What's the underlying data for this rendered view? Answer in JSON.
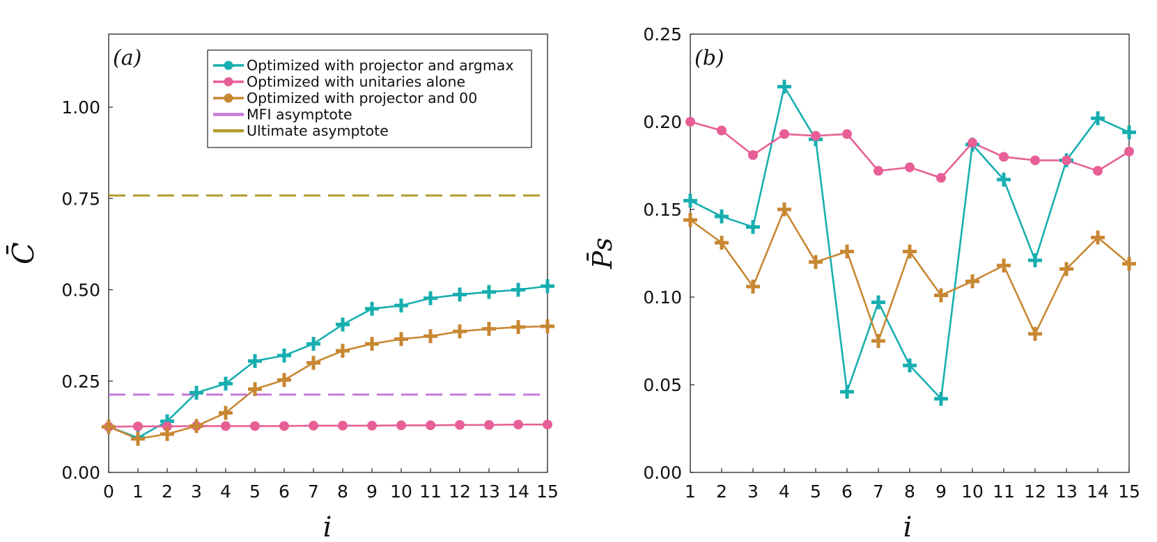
{
  "chart_data": [
    {
      "type": "line",
      "panel": "(a)",
      "xlabel": "i",
      "ylabel": "C̄",
      "x": [
        0,
        1,
        2,
        3,
        4,
        5,
        6,
        7,
        8,
        9,
        10,
        11,
        12,
        13,
        14,
        15
      ],
      "xticks": [
        "0",
        "1",
        "2",
        "3",
        "4",
        "5",
        "6",
        "7",
        "8",
        "9",
        "10",
        "11",
        "12",
        "13",
        "14",
        "15"
      ],
      "xlim": [
        0,
        15
      ],
      "ylim": [
        0,
        1.2
      ],
      "yticks": [
        0,
        0.25,
        0.5,
        0.75,
        1.0
      ],
      "ytick_labels": [
        "0.00",
        "0.25",
        "0.50",
        "0.75",
        "1.00"
      ],
      "legend_position": "top-right",
      "series": [
        {
          "name": "Optimized with projector and argmax",
          "color": "#17aeb0",
          "marker": "cross",
          "values": [
            0.125,
            0.095,
            0.14,
            0.218,
            0.243,
            0.305,
            0.32,
            0.352,
            0.405,
            0.448,
            0.457,
            0.477,
            0.487,
            0.494,
            0.5,
            0.51
          ]
        },
        {
          "name": "Optimized with unitaries alone",
          "color": "#e75f96",
          "marker": "circle",
          "values": [
            0.125,
            0.126,
            0.126,
            0.127,
            0.127,
            0.127,
            0.127,
            0.128,
            0.128,
            0.128,
            0.129,
            0.129,
            0.13,
            0.13,
            0.131,
            0.131
          ]
        },
        {
          "name": "Optimized with projector and 00",
          "color": "#c88732",
          "marker": "cross",
          "values": [
            0.125,
            0.092,
            0.105,
            0.127,
            0.163,
            0.228,
            0.253,
            0.3,
            0.333,
            0.352,
            0.365,
            0.373,
            0.386,
            0.393,
            0.398,
            0.4
          ]
        },
        {
          "name": "MFI asymptote",
          "color": "#c878dc",
          "dashed": true,
          "value": 0.213
        },
        {
          "name": "Ultimate asymptote",
          "color": "#b09a2a",
          "dashed": true,
          "value": 0.758
        }
      ]
    },
    {
      "type": "line",
      "panel": "(b)",
      "xlabel": "i",
      "ylabel": "P̄s",
      "x": [
        1,
        2,
        3,
        4,
        5,
        6,
        7,
        8,
        9,
        10,
        11,
        12,
        13,
        14,
        15
      ],
      "xticks": [
        "1",
        "2",
        "3",
        "4",
        "5",
        "6",
        "7",
        "8",
        "9",
        "10",
        "11",
        "12",
        "13",
        "14",
        "15"
      ],
      "xlim": [
        1,
        15
      ],
      "ylim": [
        0,
        0.25
      ],
      "yticks": [
        0,
        0.05,
        0.1,
        0.15,
        0.2,
        0.25
      ],
      "ytick_labels": [
        "0.00",
        "0.05",
        "0.10",
        "0.15",
        "0.20",
        "0.25"
      ],
      "series": [
        {
          "name": "Optimized with projector and argmax",
          "color": "#17aeb0",
          "marker": "cross",
          "values": [
            0.155,
            0.146,
            0.14,
            0.22,
            0.19,
            0.046,
            0.097,
            0.061,
            0.042,
            0.187,
            0.167,
            0.121,
            0.178,
            0.202,
            0.194
          ]
        },
        {
          "name": "Optimized with unitaries alone",
          "color": "#e75f96",
          "marker": "circle",
          "values": [
            0.2,
            0.195,
            0.181,
            0.193,
            0.192,
            0.193,
            0.172,
            0.174,
            0.168,
            0.188,
            0.18,
            0.178,
            0.178,
            0.172,
            0.183
          ]
        },
        {
          "name": "Optimized with projector and 00",
          "color": "#c88732",
          "marker": "cross",
          "values": [
            0.144,
            0.131,
            0.106,
            0.15,
            0.12,
            0.126,
            0.075,
            0.126,
            0.101,
            0.109,
            0.118,
            0.079,
            0.116,
            0.134,
            0.119
          ]
        }
      ]
    }
  ]
}
